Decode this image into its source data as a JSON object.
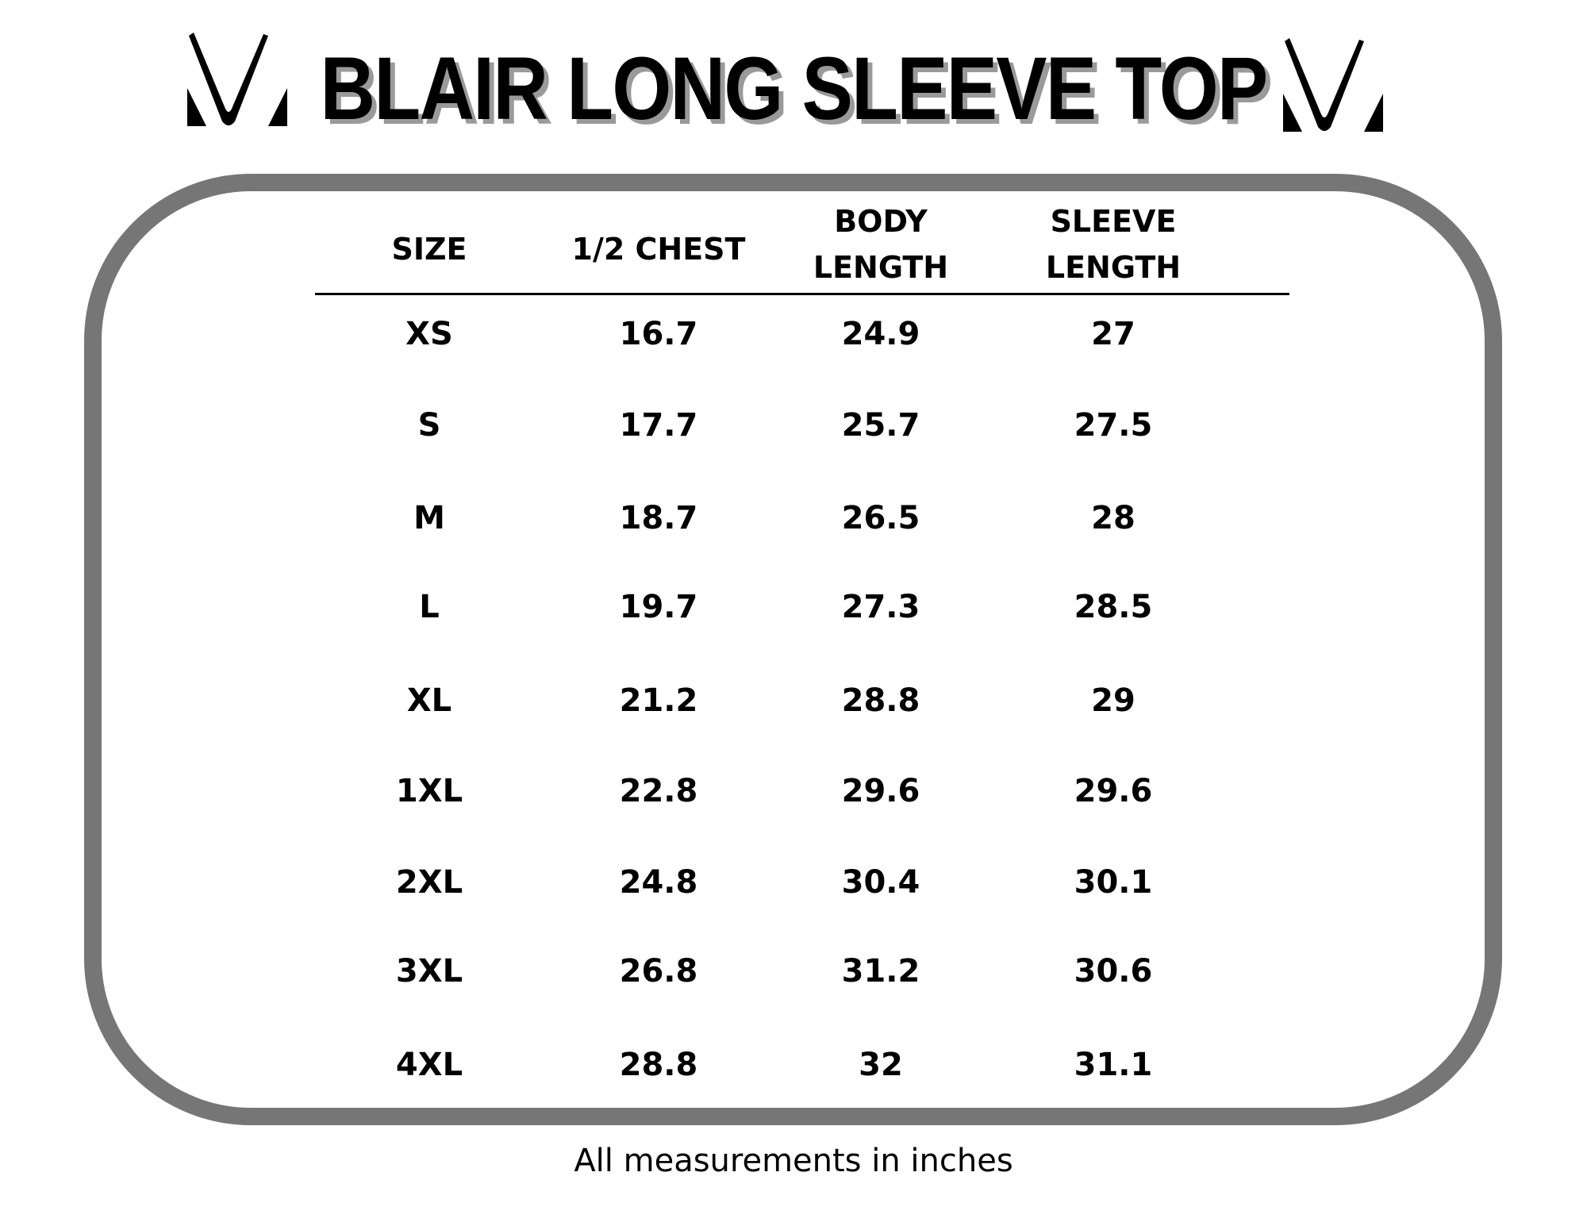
{
  "title": "BLAIR LONG SLEEVE TOP",
  "logo": {
    "left": "brand-m-logo",
    "right": "brand-m-logo"
  },
  "table": {
    "headers": [
      "SIZE",
      "1/2 CHEST",
      "BODY\nLENGTH",
      "SLEEVE\nLENGTH"
    ],
    "rows": [
      [
        "XS",
        "16.7",
        "24.9",
        "27"
      ],
      [
        "S",
        "17.7",
        "25.7",
        "27.5"
      ],
      [
        "M",
        "18.7",
        "26.5",
        "28"
      ],
      [
        "L",
        "19.7",
        "27.3",
        "28.5"
      ],
      [
        "XL",
        "21.2",
        "28.8",
        "29"
      ],
      [
        "1XL",
        "22.8",
        "29.6",
        "29.6"
      ],
      [
        "2XL",
        "24.8",
        "30.4",
        "30.1"
      ],
      [
        "3XL",
        "26.8",
        "31.2",
        "30.6"
      ],
      [
        "4XL",
        "28.8",
        "32",
        "31.1"
      ]
    ]
  },
  "footer": "All measurements in inches",
  "colors": {
    "frame": "#767676",
    "title_shadow": "#9a9a9a"
  }
}
